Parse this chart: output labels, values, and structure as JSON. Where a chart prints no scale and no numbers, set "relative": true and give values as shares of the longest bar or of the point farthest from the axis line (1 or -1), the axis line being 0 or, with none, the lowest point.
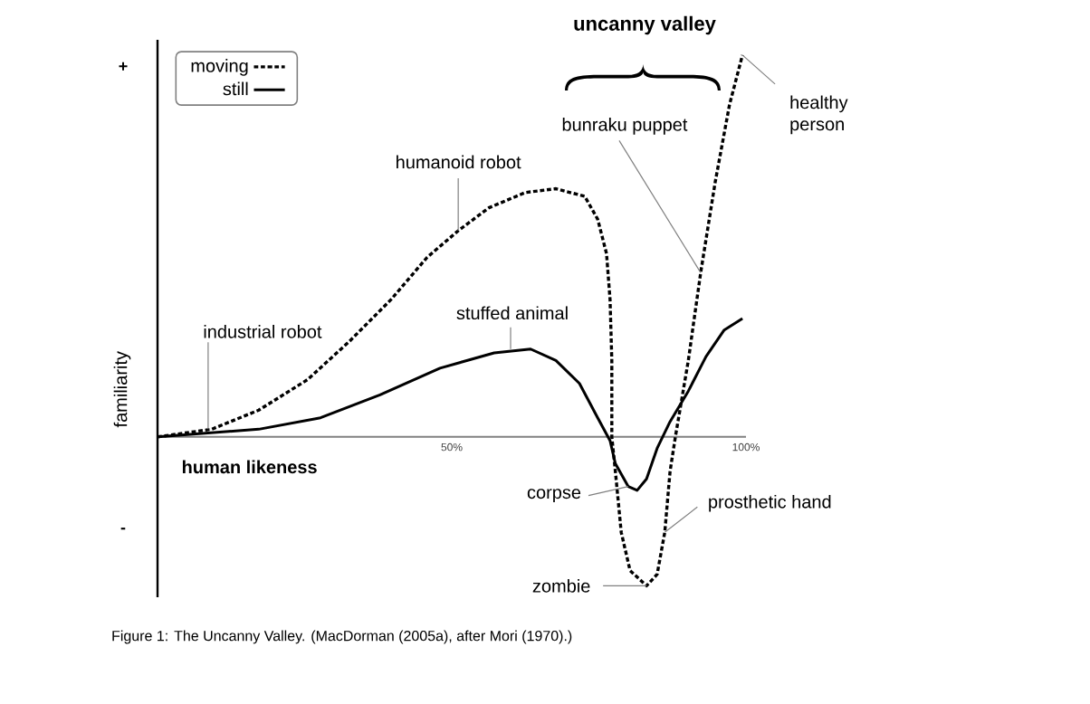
{
  "chart_data": {
    "type": "line",
    "relative": true,
    "xlabel": "human likeness",
    "ylabel": "familiarity",
    "xlim": [
      0,
      100
    ],
    "xticks": [
      {
        "value": 50,
        "label": "50%"
      },
      {
        "value": 100,
        "label": "100%"
      }
    ],
    "legend": "top left",
    "series": [
      {
        "name": "moving",
        "color": "#000000",
        "line_style": "dashed",
        "x": [
          0,
          9.2,
          17.2,
          25.5,
          32.6,
          39.7,
          45.8,
          51.1,
          56.3,
          62.5,
          67.7,
          72.6,
          74.8,
          76.3,
          76.9,
          77.2,
          77.2,
          77.8,
          78.8,
          80.3,
          83.1,
          84.9,
          86.2,
          87.1,
          88.0,
          90.2,
          92.3,
          94.8,
          97.2,
          99.4
        ],
        "values": [
          0,
          0.02,
          0.07,
          0.15,
          0.25,
          0.36,
          0.47,
          0.54,
          0.6,
          0.64,
          0.65,
          0.63,
          0.57,
          0.48,
          0.36,
          0.2,
          0,
          -0.09,
          -0.25,
          -0.35,
          -0.39,
          -0.36,
          -0.25,
          -0.09,
          0,
          0.2,
          0.43,
          0.67,
          0.87,
          1.0
        ]
      },
      {
        "name": "still",
        "color": "#000000",
        "line_style": "solid",
        "x": [
          0,
          17.2,
          27.7,
          37.8,
          48.0,
          57.2,
          63.4,
          67.7,
          71.7,
          74.8,
          76.9,
          77.8,
          80.0,
          81.5,
          83.1,
          84.9,
          87.1,
          90.2,
          93.2,
          96.3,
          99.4
        ],
        "values": [
          0,
          0.02,
          0.05,
          0.11,
          0.18,
          0.22,
          0.23,
          0.2,
          0.14,
          0.05,
          -0.01,
          -0.07,
          -0.13,
          -0.14,
          -0.11,
          -0.03,
          0.04,
          0.12,
          0.21,
          0.28,
          0.31
        ]
      }
    ],
    "annotations": [
      "+",
      "-",
      "uncanny valley",
      "Figure 1: The Uncanny Valley. (MacDorman (2005a), after Mori (1970).)",
      {
        "text": "industrial robot",
        "x": 8.6,
        "y": 0.02
      },
      {
        "text": "humanoid robot",
        "x": 51.1,
        "y": 0.54
      },
      {
        "text": "stuffed animal",
        "x": 60,
        "y": 0.23
      },
      {
        "text": "bunraku puppet",
        "x": 92.3,
        "y": 0.43
      },
      {
        "text": "healthy person",
        "x": 99.4,
        "y": 1.0
      },
      {
        "text": "corpse",
        "x": 80.0,
        "y": -0.13
      },
      {
        "text": "zombie",
        "x": 83.1,
        "y": -0.39
      },
      {
        "text": "prosthetic hand",
        "x": 86.2,
        "y": -0.25
      }
    ]
  }
}
